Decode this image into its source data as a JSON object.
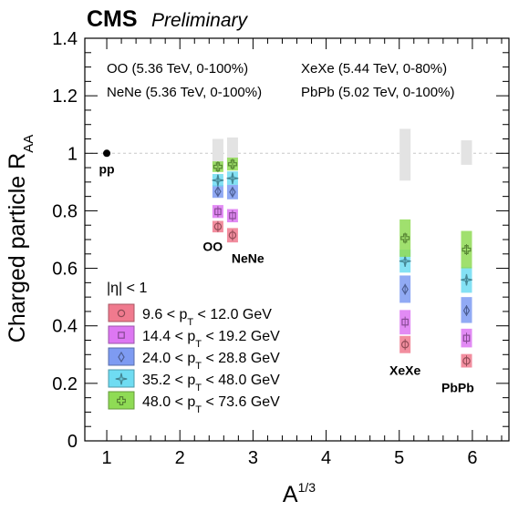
{
  "chart_data": {
    "type": "scatter",
    "cms_label": "CMS",
    "preliminary_label": "Preliminary",
    "ylabel": {
      "main": "Charged particle R",
      "sub": "AA"
    },
    "xlabel": {
      "main": "A",
      "sup": "1/3"
    },
    "xlim": [
      0.7,
      6.5
    ],
    "ylim": [
      0,
      1.4
    ],
    "xticks": [
      1,
      2,
      3,
      4,
      5,
      6
    ],
    "yticks": [
      0,
      0.2,
      0.4,
      0.6,
      0.8,
      1.0,
      1.2,
      1.4
    ],
    "ytick_labels": [
      "0",
      "0.2",
      "0.4",
      "0.6",
      "0.8",
      "1",
      "1.2",
      "1.4"
    ],
    "reference_line_y": 1.0,
    "annotations": [
      {
        "text": "OO (5.36 TeV, 0-100%)",
        "pos": "top-left"
      },
      {
        "text": "XeXe (5.44 TeV, 0-80%)",
        "pos": "top-right"
      },
      {
        "text": "NeNe (5.36 TeV, 0-100%)",
        "pos": "second-left"
      },
      {
        "text": "PbPb (5.02 TeV, 0-100%)",
        "pos": "second-right"
      }
    ],
    "eta_label": "|η| < 1",
    "system_labels": [
      {
        "text": "pp",
        "x": 1.0,
        "y": 0.93
      },
      {
        "text": "OO",
        "x": 2.45,
        "y": 0.66
      },
      {
        "text": "NeNe",
        "x": 2.93,
        "y": 0.62
      },
      {
        "text": "XeXe",
        "x": 5.08,
        "y": 0.23
      },
      {
        "text": "PbPb",
        "x": 5.8,
        "y": 0.17
      }
    ],
    "pp_point": {
      "x": 1.0,
      "y": 1.0
    },
    "normalization_boxes": [
      {
        "x": 2.52,
        "low": 0.955,
        "high": 1.05
      },
      {
        "x": 2.72,
        "low": 0.955,
        "high": 1.055
      },
      {
        "x": 5.08,
        "low": 0.905,
        "high": 1.085
      },
      {
        "x": 5.92,
        "low": 0.96,
        "high": 1.045
      }
    ],
    "x_positions": {
      "OO": 2.52,
      "NeNe": 2.72,
      "XeXe": 5.08,
      "PbPb": 5.92
    },
    "series": [
      {
        "name": "9.6 < p",
        "pt_sub": "T",
        "name_tail": " < 12.0 GeV",
        "color": "#f07a8e",
        "marker": "circle",
        "points": [
          {
            "system": "OO",
            "y": 0.745,
            "low": 0.725,
            "high": 0.765
          },
          {
            "system": "NeNe",
            "y": 0.715,
            "low": 0.69,
            "high": 0.74
          },
          {
            "system": "XeXe",
            "y": 0.335,
            "low": 0.305,
            "high": 0.365
          },
          {
            "system": "PbPb",
            "y": 0.278,
            "low": 0.255,
            "high": 0.302
          }
        ]
      },
      {
        "name": "14.4 < p",
        "pt_sub": "T",
        "name_tail": " < 19.2 GeV",
        "color": "#dd77f2",
        "marker": "square",
        "points": [
          {
            "system": "OO",
            "y": 0.797,
            "low": 0.775,
            "high": 0.82
          },
          {
            "system": "NeNe",
            "y": 0.783,
            "low": 0.76,
            "high": 0.806
          },
          {
            "system": "XeXe",
            "y": 0.413,
            "low": 0.37,
            "high": 0.455
          },
          {
            "system": "PbPb",
            "y": 0.357,
            "low": 0.325,
            "high": 0.39
          }
        ]
      },
      {
        "name": "24.0 < p",
        "pt_sub": "T",
        "name_tail": " < 28.8 GeV",
        "color": "#7e9bf2",
        "marker": "diamond",
        "points": [
          {
            "system": "OO",
            "y": 0.867,
            "low": 0.845,
            "high": 0.89
          },
          {
            "system": "NeNe",
            "y": 0.865,
            "low": 0.84,
            "high": 0.89
          },
          {
            "system": "XeXe",
            "y": 0.527,
            "low": 0.48,
            "high": 0.575
          },
          {
            "system": "PbPb",
            "y": 0.453,
            "low": 0.41,
            "high": 0.5
          }
        ]
      },
      {
        "name": "35.2 < p",
        "pt_sub": "T",
        "name_tail": " < 48.0 GeV",
        "color": "#6fdcf2",
        "marker": "star",
        "points": [
          {
            "system": "OO",
            "y": 0.906,
            "low": 0.885,
            "high": 0.928
          },
          {
            "system": "NeNe",
            "y": 0.913,
            "low": 0.89,
            "high": 0.937
          },
          {
            "system": "XeXe",
            "y": 0.625,
            "low": 0.585,
            "high": 0.665
          },
          {
            "system": "PbPb",
            "y": 0.56,
            "low": 0.515,
            "high": 0.605
          }
        ]
      },
      {
        "name": "48.0 < p",
        "pt_sub": "T",
        "name_tail": " < 73.6 GeV",
        "color": "#8fdb55",
        "marker": "cross",
        "points": [
          {
            "system": "OO",
            "y": 0.953,
            "low": 0.935,
            "high": 0.972
          },
          {
            "system": "NeNe",
            "y": 0.962,
            "low": 0.94,
            "high": 0.985
          },
          {
            "system": "XeXe",
            "y": 0.705,
            "low": 0.64,
            "high": 0.77
          },
          {
            "system": "PbPb",
            "y": 0.665,
            "low": 0.6,
            "high": 0.73
          }
        ]
      }
    ]
  }
}
